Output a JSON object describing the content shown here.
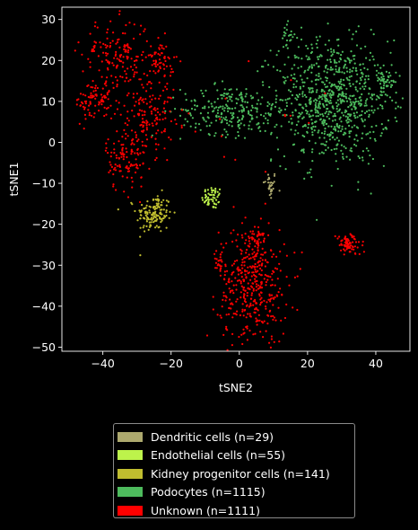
{
  "chart_data": {
    "type": "scatter",
    "title": "",
    "xlabel": "tSNE2",
    "ylabel": "tSNE1",
    "xlim": [
      -52,
      50
    ],
    "ylim": [
      -51,
      33
    ],
    "x_ticks": [
      -40,
      -20,
      0,
      20,
      40
    ],
    "y_ticks": [
      -50,
      -40,
      -30,
      -20,
      -10,
      0,
      10,
      20,
      30
    ],
    "x_tick_labels": [
      "−40",
      "−20",
      "0",
      "20",
      "40"
    ],
    "y_tick_labels": [
      "−50",
      "−40",
      "−30",
      "−20",
      "−10",
      "0",
      "10",
      "20",
      "30"
    ],
    "grid": false,
    "legend_position": "below",
    "background": "#000000",
    "series": [
      {
        "name": "Dendritic cells (n=29)",
        "color": "#ada96e",
        "count": 29,
        "clusters": [
          {
            "cx": 9,
            "cy": -10.5,
            "sx": 1.0,
            "sy": 1.8,
            "n": 29
          }
        ]
      },
      {
        "name": "Endothelial cells (n=55)",
        "color": "#bdf34b",
        "count": 55,
        "clusters": [
          {
            "cx": -8,
            "cy": -13.5,
            "sx": 1.5,
            "sy": 1.4,
            "n": 55
          }
        ]
      },
      {
        "name": "Kidney progenitor cells (n=141)",
        "color": "#c0bd2f",
        "count": 141,
        "clusters": [
          {
            "cx": -25,
            "cy": -17.5,
            "sx": 2.6,
            "sy": 2.4,
            "n": 141
          }
        ]
      },
      {
        "name": "Podocytes (n=1115)",
        "color": "#4dbb5d",
        "count": 1115,
        "clusters": [
          {
            "cx": 27,
            "cy": 10,
            "sx": 8.5,
            "sy": 7.5,
            "n": 820
          },
          {
            "cx": -3,
            "cy": 8,
            "sx": 7.0,
            "sy": 3.0,
            "n": 230
          },
          {
            "cx": 43,
            "cy": 15,
            "sx": 1.5,
            "sy": 1.5,
            "n": 45
          },
          {
            "cx": 14,
            "cy": 26,
            "sx": 1.2,
            "sy": 1.5,
            "n": 20
          }
        ]
      },
      {
        "name": "Unknown (n=1111)",
        "color": "#ff0000",
        "count": 1111,
        "clusters": [
          {
            "cx": -36,
            "cy": 22,
            "sx": 5.0,
            "sy": 4.0,
            "n": 140
          },
          {
            "cx": -23,
            "cy": 20,
            "sx": 2.0,
            "sy": 2.5,
            "n": 60
          },
          {
            "cx": -42,
            "cy": 10,
            "sx": 3.0,
            "sy": 2.5,
            "n": 90
          },
          {
            "cx": -27,
            "cy": 8,
            "sx": 4.0,
            "sy": 5.0,
            "n": 150
          },
          {
            "cx": -33,
            "cy": -4,
            "sx": 3.0,
            "sy": 4.0,
            "n": 110
          },
          {
            "cx": 4,
            "cy": -35,
            "sx": 5.0,
            "sy": 7.0,
            "n": 400
          },
          {
            "cx": 5,
            "cy": -23,
            "sx": 1.0,
            "sy": 1.5,
            "n": 36
          },
          {
            "cx": -6,
            "cy": -29,
            "sx": 1.0,
            "sy": 1.5,
            "n": 25
          },
          {
            "cx": 32,
            "cy": -25,
            "sx": 1.8,
            "sy": 1.3,
            "n": 80
          },
          {
            "cx": 0,
            "cy": 5,
            "sx": 20,
            "sy": 8,
            "n": 20
          }
        ]
      }
    ]
  }
}
